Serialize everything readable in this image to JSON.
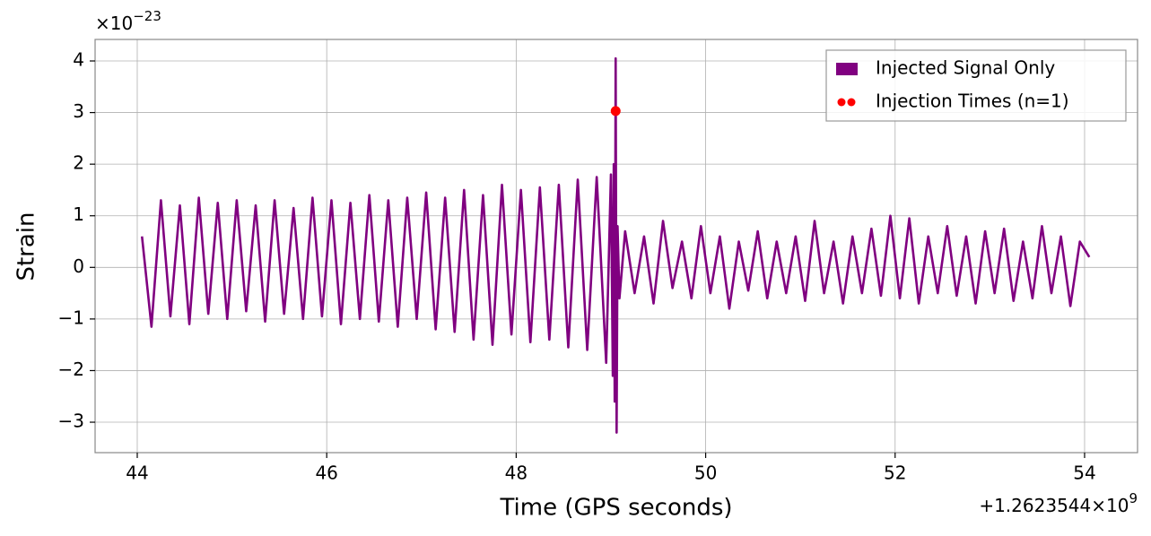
{
  "chart_data": {
    "type": "line",
    "xlabel": "Time (GPS seconds)",
    "ylabel": "Strain",
    "y_offset_text": {
      "base": "×10",
      "exponent": "−23"
    },
    "x_offset_text": {
      "base": "+1.2623544×10",
      "exponent": "9"
    },
    "xlim": [
      43.555,
      54.559
    ],
    "ylim": [
      -3.59,
      4.417
    ],
    "xticks": [
      44,
      46,
      48,
      50,
      52,
      54
    ],
    "yticks": [
      {
        "value": -3,
        "label": "−3"
      },
      {
        "value": -2,
        "label": "−2"
      },
      {
        "value": -1,
        "label": "−1"
      },
      0,
      1,
      2,
      3,
      4
    ],
    "grid": true,
    "legend": "upper right",
    "series": [
      {
        "name": "Injected Signal Only",
        "color": "#800080",
        "type": "line",
        "x": [
          44.05,
          44.15,
          44.25,
          44.35,
          44.45,
          44.55,
          44.65,
          44.75,
          44.85,
          44.95,
          45.05,
          45.15,
          45.25,
          45.35,
          45.45,
          45.55,
          45.65,
          45.75,
          45.85,
          45.95,
          46.05,
          46.15,
          46.25,
          46.35,
          46.45,
          46.55,
          46.65,
          46.75,
          46.85,
          46.95,
          47.05,
          47.15,
          47.25,
          47.35,
          47.45,
          47.55,
          47.65,
          47.75,
          47.85,
          47.95,
          48.05,
          48.15,
          48.25,
          48.35,
          48.45,
          48.55,
          48.65,
          48.75,
          48.85,
          48.95,
          49.0,
          49.02,
          49.03,
          49.04,
          49.05,
          49.06,
          49.07,
          49.09,
          49.15,
          49.25,
          49.35,
          49.45,
          49.55,
          49.65,
          49.75,
          49.85,
          49.95,
          50.05,
          50.15,
          50.25,
          50.35,
          50.45,
          50.55,
          50.65,
          50.75,
          50.85,
          50.95,
          51.05,
          51.15,
          51.25,
          51.35,
          51.45,
          51.55,
          51.65,
          51.75,
          51.85,
          51.95,
          52.05,
          52.15,
          52.25,
          52.35,
          52.45,
          52.55,
          52.65,
          52.75,
          52.85,
          52.95,
          53.05,
          53.15,
          53.25,
          53.35,
          53.45,
          53.55,
          53.65,
          53.75,
          53.85,
          53.95,
          54.05
        ],
        "values": [
          0.6,
          -1.15,
          1.3,
          -0.95,
          1.2,
          -1.1,
          1.35,
          -0.9,
          1.25,
          -1.0,
          1.3,
          -0.85,
          1.2,
          -1.05,
          1.3,
          -0.9,
          1.15,
          -1.0,
          1.35,
          -0.95,
          1.3,
          -1.1,
          1.25,
          -1.0,
          1.4,
          -1.05,
          1.3,
          -1.15,
          1.35,
          -1.0,
          1.45,
          -1.2,
          1.35,
          -1.25,
          1.5,
          -1.4,
          1.4,
          -1.5,
          1.6,
          -1.3,
          1.5,
          -1.45,
          1.55,
          -1.4,
          1.6,
          -1.55,
          1.7,
          -1.6,
          1.75,
          -1.85,
          1.8,
          -2.1,
          2.0,
          -2.6,
          4.05,
          -3.2,
          0.8,
          -0.6,
          0.7,
          -0.5,
          0.6,
          -0.7,
          0.9,
          -0.4,
          0.5,
          -0.6,
          0.8,
          -0.5,
          0.6,
          -0.8,
          0.5,
          -0.45,
          0.7,
          -0.6,
          0.5,
          -0.5,
          0.6,
          -0.65,
          0.9,
          -0.5,
          0.5,
          -0.7,
          0.6,
          -0.5,
          0.75,
          -0.55,
          1.0,
          -0.6,
          0.95,
          -0.7,
          0.6,
          -0.5,
          0.8,
          -0.55,
          0.6,
          -0.7,
          0.7,
          -0.5,
          0.75,
          -0.65,
          0.5,
          -0.6,
          0.8,
          -0.5,
          0.6,
          -0.75,
          0.5,
          0.2
        ]
      },
      {
        "name": "Injection Times (n=1)",
        "color": "#ff0000",
        "type": "scatter",
        "x": [
          49.05
        ],
        "values": [
          3.03
        ]
      }
    ]
  }
}
